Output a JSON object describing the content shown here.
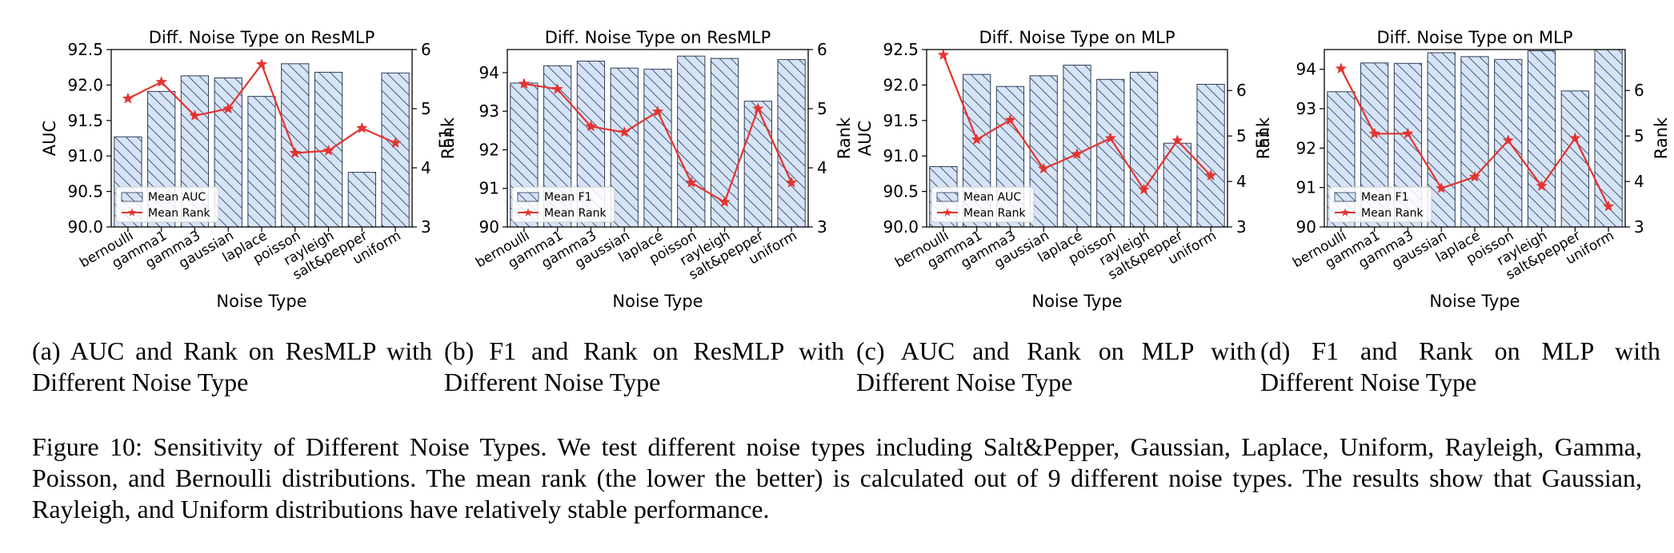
{
  "chart_data": [
    {
      "type": "bar",
      "title": "Diff. Noise Type on ResMLP",
      "xlabel": "Noise Type",
      "ylabel": "AUC",
      "y2label": "Rank",
      "categories": [
        "bernoulli",
        "gamma1",
        "gamma3",
        "gaussian",
        "laplace",
        "poisson",
        "rayleigh",
        "salt&pepper",
        "uniform"
      ],
      "ylim": [
        90.0,
        92.5
      ],
      "yticks": [
        90.0,
        90.5,
        91.0,
        91.5,
        92.0,
        92.5
      ],
      "ytick_labels": [
        "90.0",
        "90.5",
        "91.0",
        "91.5",
        "92.0",
        "92.5"
      ],
      "y2lim": [
        3,
        6
      ],
      "y2ticks": [
        3,
        4,
        5,
        6
      ],
      "legend_position": "lower-left",
      "series": [
        {
          "name": "Mean AUC",
          "kind": "bar",
          "axis": "left",
          "values": [
            91.27,
            91.91,
            92.13,
            92.1,
            91.84,
            92.3,
            92.18,
            90.77,
            92.17
          ]
        },
        {
          "name": "Mean Rank",
          "kind": "line",
          "axis": "right",
          "values": [
            5.17,
            5.45,
            4.88,
            5.0,
            5.75,
            4.25,
            4.29,
            4.67,
            4.42
          ]
        }
      ]
    },
    {
      "type": "bar",
      "title": "Diff. Noise Type on ResMLP",
      "xlabel": "Noise Type",
      "ylabel": "F1",
      "y2label": "Rank",
      "categories": [
        "bernoulli",
        "gamma1",
        "gamma3",
        "gaussian",
        "laplace",
        "poisson",
        "rayleigh",
        "salt&pepper",
        "uniform"
      ],
      "ylim": [
        90,
        94.6
      ],
      "yticks": [
        90,
        91,
        92,
        93,
        94
      ],
      "ytick_labels": [
        "90",
        "91",
        "92",
        "93",
        "94"
      ],
      "y2lim": [
        3,
        6
      ],
      "y2ticks": [
        3,
        4,
        5,
        6
      ],
      "legend_position": "lower-left",
      "series": [
        {
          "name": "Mean F1",
          "kind": "bar",
          "axis": "left",
          "values": [
            93.73,
            94.18,
            94.3,
            94.12,
            94.09,
            94.43,
            94.37,
            93.26,
            94.34
          ]
        },
        {
          "name": "Mean Rank",
          "kind": "line",
          "axis": "right",
          "values": [
            5.42,
            5.33,
            4.7,
            4.6,
            4.95,
            3.75,
            3.42,
            5.0,
            3.75
          ]
        }
      ]
    },
    {
      "type": "bar",
      "title": "Diff. Noise Type on MLP",
      "xlabel": "Noise Type",
      "ylabel": "AUC",
      "y2label": "Rank",
      "categories": [
        "bernoulli",
        "gamma1",
        "gamma3",
        "gaussian",
        "laplace",
        "poisson",
        "rayleigh",
        "salt&pepper",
        "uniform"
      ],
      "ylim": [
        90.0,
        92.5
      ],
      "yticks": [
        90.0,
        90.5,
        91.0,
        91.5,
        92.0,
        92.5
      ],
      "ytick_labels": [
        "90.0",
        "90.5",
        "91.0",
        "91.5",
        "92.0",
        "92.5"
      ],
      "y2lim": [
        3,
        6.9
      ],
      "y2ticks": [
        3,
        4,
        5,
        6
      ],
      "legend_position": "lower-left",
      "series": [
        {
          "name": "Mean AUC",
          "kind": "bar",
          "axis": "left",
          "values": [
            90.85,
            92.15,
            91.98,
            92.13,
            92.28,
            92.08,
            92.18,
            91.18,
            92.01
          ]
        },
        {
          "name": "Mean Rank",
          "kind": "line",
          "axis": "right",
          "values": [
            6.78,
            4.92,
            5.35,
            4.28,
            4.6,
            4.95,
            3.82,
            4.9,
            4.13
          ]
        }
      ]
    },
    {
      "type": "bar",
      "title": "Diff. Noise Type on MLP",
      "xlabel": "Noise Type",
      "ylabel": "F1",
      "y2label": "Rank",
      "categories": [
        "bernoulli",
        "gamma1",
        "gamma3",
        "gaussian",
        "laplace",
        "poisson",
        "rayleigh",
        "salt&pepper",
        "uniform"
      ],
      "ylim": [
        90,
        94.5
      ],
      "yticks": [
        90,
        91,
        92,
        93,
        94
      ],
      "ytick_labels": [
        "90",
        "91",
        "92",
        "93",
        "94"
      ],
      "y2lim": [
        3,
        6.9
      ],
      "y2ticks": [
        3,
        4,
        5,
        6
      ],
      "legend_position": "lower-left",
      "series": [
        {
          "name": "Mean F1",
          "kind": "bar",
          "axis": "left",
          "values": [
            93.43,
            94.16,
            94.15,
            94.42,
            94.32,
            94.25,
            94.47,
            93.45,
            94.55
          ]
        },
        {
          "name": "Mean Rank",
          "kind": "line",
          "axis": "right",
          "values": [
            6.48,
            5.05,
            5.05,
            3.85,
            4.1,
            4.9,
            3.9,
            4.95,
            3.45
          ]
        }
      ]
    }
  ],
  "subcaptions": [
    "(a) AUC and Rank on ResMLP with Different Noise Type",
    "(b) F1 and Rank on ResMLP with Different Noise Type",
    "(c) AUC and Rank on MLP with Different Noise Type",
    "(d) F1 and Rank on MLP with Different Noise Type"
  ],
  "figure_caption": "Figure 10: Sensitivity of Different Noise Types. We test different noise types including Salt&Pepper, Gaussian, Laplace, Uniform, Rayleigh, Gamma, Poisson, and Bernoulli distributions. The mean rank (the lower the better) is calculated out of 9 different noise types. The results show that Gaussian, Rayleigh, and Uniform distributions have relatively stable performance.",
  "colors": {
    "bar_fill": "#d6e4f7",
    "bar_edge": "#2f3d55",
    "hatch": "#3a4a66",
    "line": "#e3342f"
  }
}
